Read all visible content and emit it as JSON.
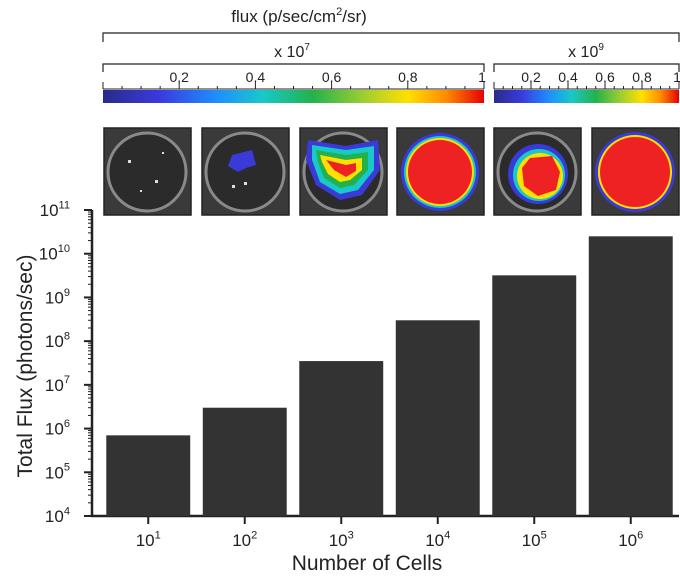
{
  "header": {
    "flux_label": "flux (p/sec/cm",
    "flux_sup": "2",
    "flux_suffix": "/sr)",
    "scale_low_prefix": "x 10",
    "scale_low_exp": "7",
    "scale_high_prefix": "x 10",
    "scale_high_exp": "9"
  },
  "colorbar_low_ticks": [
    "0.2",
    "0.4",
    "0.6",
    "0.8",
    "1"
  ],
  "colorbar_high_ticks": [
    "0.2",
    "0.4",
    "0.6",
    "0.8",
    "1"
  ],
  "colors": {
    "bar": "#333333",
    "well_bg": "#3a3a3a",
    "heat_high": "#ee2222"
  },
  "chart_data": {
    "type": "bar",
    "xlabel": "Number of Cells",
    "ylabel": "Total Flux (photons/sec)",
    "yscale": "log",
    "ylim": [
      10000,
      100000000000
    ],
    "categories": [
      "10^1",
      "10^2",
      "10^3",
      "10^4",
      "10^5",
      "10^6"
    ],
    "category_labels": [
      {
        "base": "10",
        "exp": "1"
      },
      {
        "base": "10",
        "exp": "2"
      },
      {
        "base": "10",
        "exp": "3"
      },
      {
        "base": "10",
        "exp": "4"
      },
      {
        "base": "10",
        "exp": "5"
      },
      {
        "base": "10",
        "exp": "6"
      }
    ],
    "values": [
      700000,
      3000000,
      35000000,
      300000000,
      3200000000,
      25000000000
    ],
    "yticks": [
      {
        "base": "10",
        "exp": "4"
      },
      {
        "base": "10",
        "exp": "5"
      },
      {
        "base": "10",
        "exp": "6"
      },
      {
        "base": "10",
        "exp": "7"
      },
      {
        "base": "10",
        "exp": "8"
      },
      {
        "base": "10",
        "exp": "9"
      },
      {
        "base": "10",
        "exp": "10"
      },
      {
        "base": "10",
        "exp": "11"
      }
    ]
  }
}
